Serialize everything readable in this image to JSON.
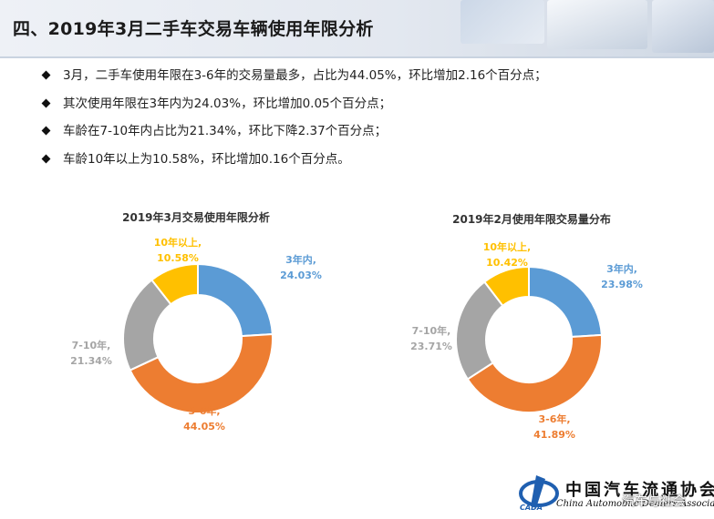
{
  "header": {
    "title": "四、2019年3月二手车交易车辆使用年限分析"
  },
  "bullets": [
    "3月，二手车使用年限在3-6年的交易量最多，占比为44.05%，环比增加2.16个百分点；",
    "其次使用年限在3年内为24.03%，环比增加0.05个百分点；",
    "车龄在7-10年内占比为21.34%，环比下降2.37个百分点；",
    "车龄10年以上为10.58%，环比增加0.16个百分点。"
  ],
  "chart_data": [
    {
      "type": "pie",
      "title": "2019年3月交易使用年限分析",
      "categories": [
        "3年内",
        "3-6年",
        "7-10年",
        "10年以上"
      ],
      "values": [
        24.03,
        44.05,
        21.34,
        10.58
      ],
      "labels": [
        "3年内,",
        "3-6年,",
        "7-10年,",
        "10年以上,"
      ],
      "value_labels": [
        "24.03%",
        "44.05%",
        "21.34%",
        "10.58%"
      ],
      "colors": [
        "#5b9bd5",
        "#ed7d31",
        "#a5a5a5",
        "#ffc000"
      ]
    },
    {
      "type": "pie",
      "title": "2019年2月使用年限交易量分布",
      "categories": [
        "3年内",
        "3-6年",
        "7-10年",
        "10年以上"
      ],
      "values": [
        23.98,
        41.89,
        23.71,
        10.42
      ],
      "labels": [
        "3年内,",
        "3-6年,",
        "7-10年,",
        "10年以上,"
      ],
      "value_labels": [
        "23.98%",
        "41.89%",
        "23.71%",
        "10.42%"
      ],
      "colors": [
        "#5b9bd5",
        "#ed7d31",
        "#a5a5a5",
        "#ffc000"
      ]
    }
  ],
  "logo": {
    "name_cn": "中国汽车流通协会",
    "name_en": "China Automobile Dealers Association",
    "abbr": "CADA"
  },
  "watermark": "汽车与社会"
}
